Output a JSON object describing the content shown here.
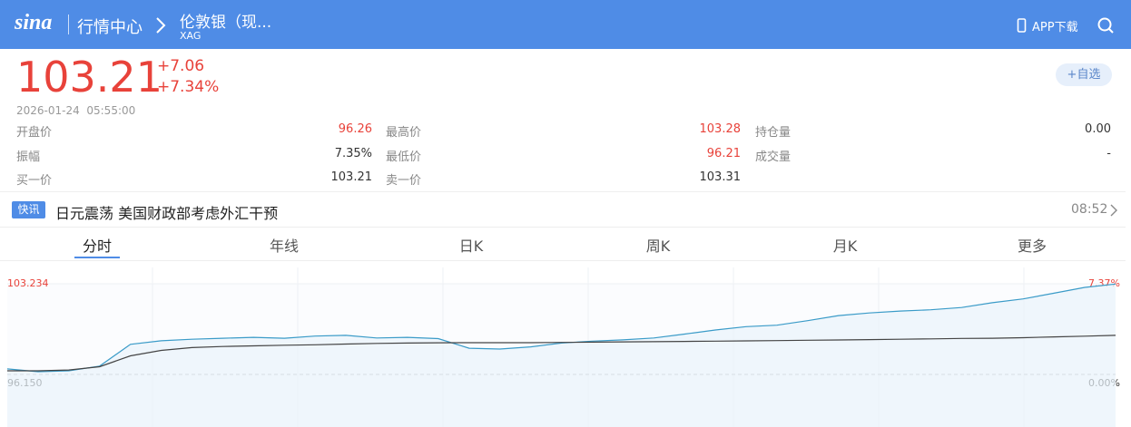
{
  "header": {
    "logo": "sina",
    "section": "行情中心",
    "name": "伦敦银（现...",
    "code": "XAG",
    "app": "APP下载"
  },
  "quote": {
    "price": "103.21",
    "change": "+7.06",
    "change_pct": "+7.34%",
    "time": "2026-01-24  05:55:00",
    "add": "+自选"
  },
  "stats": [
    [
      {
        "label": "开盘价",
        "value": "96.26",
        "up": true
      },
      {
        "label": "最高价",
        "value": "103.28",
        "up": true
      },
      {
        "label": "持仓量",
        "value": "0.00",
        "up": false
      }
    ],
    [
      {
        "label": "振幅",
        "value": "7.35%",
        "up": false
      },
      {
        "label": "最低价",
        "value": "96.21",
        "up": true
      },
      {
        "label": "成交量",
        "value": "-",
        "up": false
      }
    ],
    [
      {
        "label": "买一价",
        "value": "103.21",
        "up": false
      },
      {
        "label": "卖一价",
        "value": "103.31",
        "up": false
      }
    ]
  ],
  "news": {
    "badge": "快讯",
    "title": "日元震荡 美国财政部考虑外汇干预",
    "time": "08:52"
  },
  "tabs": [
    "分时",
    "年线",
    "日K",
    "周K",
    "月K",
    "更多"
  ],
  "active_tab": 0,
  "chart_data": {
    "type": "line",
    "ylim": [
      96.15,
      103.234
    ],
    "yticks": [
      103.234,
      {
        "value": 96.15,
        "label": "96.150"
      }
    ],
    "y2lim": [
      0,
      7.37
    ],
    "y2ticks": [
      {
        "value": 7.37,
        "label": "7.37%"
      },
      {
        "value": 0,
        "label": "0.00%"
      }
    ],
    "series": [
      {
        "color": "#3a9bc8",
        "values": [
          96.58,
          96.36,
          96.43,
          96.8,
          98.5,
          98.78,
          98.9,
          98.98,
          99.05,
          98.98,
          99.15,
          99.2,
          99.0,
          99.05,
          98.95,
          98.2,
          98.13,
          98.3,
          98.6,
          98.75,
          98.85,
          99.0,
          99.3,
          99.62,
          99.88,
          100.0,
          100.35,
          100.75,
          100.95,
          101.1,
          101.2,
          101.38,
          101.75,
          102.05,
          102.5,
          102.95,
          103.21
        ]
      },
      {
        "color": "#444444",
        "values": [
          96.43,
          96.43,
          96.5,
          96.75,
          97.6,
          98.03,
          98.25,
          98.33,
          98.38,
          98.43,
          98.47,
          98.52,
          98.57,
          98.6,
          98.62,
          98.63,
          98.63,
          98.63,
          98.65,
          98.67,
          98.69,
          98.71,
          98.73,
          98.75,
          98.77,
          98.79,
          98.82,
          98.84,
          98.87,
          98.9,
          98.93,
          98.96,
          98.98,
          99.02,
          99.08,
          99.14,
          99.2
        ]
      }
    ]
  }
}
